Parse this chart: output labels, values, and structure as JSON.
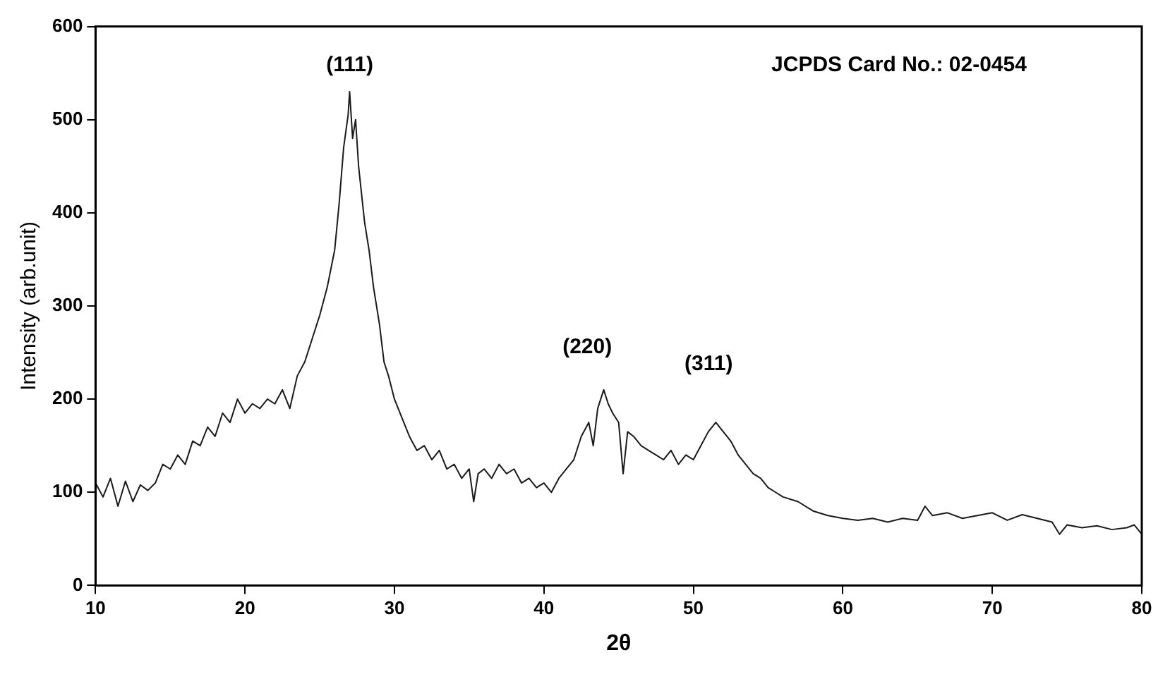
{
  "chart_data": {
    "type": "line",
    "xlabel": "2θ",
    "ylabel": "Intensity (arb.unit)",
    "xlim": [
      10,
      80
    ],
    "xticks": [
      10,
      20,
      30,
      40,
      50,
      60,
      70,
      80
    ],
    "ylim": [
      0,
      600
    ],
    "yticks": [
      0,
      100,
      200,
      300,
      400,
      500,
      600
    ],
    "grid": false,
    "legend": false,
    "marker": "none",
    "line_style": "solid",
    "annotations": [
      "(111)",
      "(220)",
      "(311)",
      "JCPDS Card No.: 02-0454"
    ],
    "series": [
      {
        "color": "#1a1a1a",
        "x": [
          10,
          10.5,
          11,
          11.5,
          12,
          12.5,
          13,
          13.5,
          14,
          14.5,
          15,
          15.5,
          16,
          16.5,
          17,
          17.5,
          18,
          18.5,
          19,
          19.5,
          20,
          20.5,
          21,
          21.5,
          22,
          22.5,
          23,
          23.5,
          24,
          24.5,
          25,
          25.5,
          26,
          26.3,
          26.6,
          26.9,
          27,
          27.2,
          27.4,
          27.6,
          27.8,
          28,
          28.3,
          28.6,
          29,
          29.3,
          29.6,
          30,
          30.5,
          31,
          31.5,
          32,
          32.5,
          33,
          33.5,
          34,
          34.5,
          35,
          35.3,
          35.6,
          36,
          36.5,
          37,
          37.5,
          38,
          38.5,
          39,
          39.5,
          40,
          40.5,
          41,
          41.5,
          42,
          42.5,
          43,
          43.3,
          43.6,
          44,
          44.3,
          44.6,
          45,
          45.3,
          45.6,
          46,
          46.5,
          47,
          47.5,
          48,
          48.5,
          49,
          49.5,
          50,
          50.5,
          51,
          51.5,
          52,
          52.5,
          53,
          53.5,
          54,
          54.5,
          55,
          55.5,
          56,
          57,
          58,
          59,
          60,
          61,
          62,
          63,
          64,
          65,
          65.5,
          66,
          67,
          68,
          69,
          70,
          71,
          72,
          73,
          74,
          74.5,
          75,
          76,
          77,
          78,
          79,
          79.5,
          80
        ],
        "values": [
          110,
          95,
          115,
          85,
          112,
          90,
          108,
          102,
          110,
          130,
          125,
          140,
          130,
          155,
          150,
          170,
          160,
          185,
          175,
          200,
          185,
          195,
          190,
          200,
          195,
          210,
          190,
          225,
          240,
          265,
          290,
          320,
          360,
          410,
          470,
          505,
          530,
          480,
          500,
          450,
          420,
          390,
          360,
          320,
          280,
          240,
          225,
          200,
          180,
          160,
          145,
          150,
          135,
          145,
          125,
          130,
          115,
          125,
          90,
          120,
          125,
          115,
          130,
          120,
          125,
          110,
          115,
          105,
          110,
          100,
          115,
          125,
          135,
          160,
          175,
          150,
          190,
          210,
          195,
          185,
          175,
          120,
          165,
          160,
          150,
          145,
          140,
          135,
          145,
          130,
          140,
          135,
          150,
          165,
          175,
          165,
          155,
          140,
          130,
          120,
          115,
          105,
          100,
          95,
          90,
          80,
          75,
          72,
          70,
          72,
          68,
          72,
          70,
          85,
          75,
          78,
          72,
          75,
          78,
          70,
          76,
          72,
          68,
          55,
          65,
          62,
          64,
          60,
          62,
          65,
          55
        ]
      }
    ]
  }
}
